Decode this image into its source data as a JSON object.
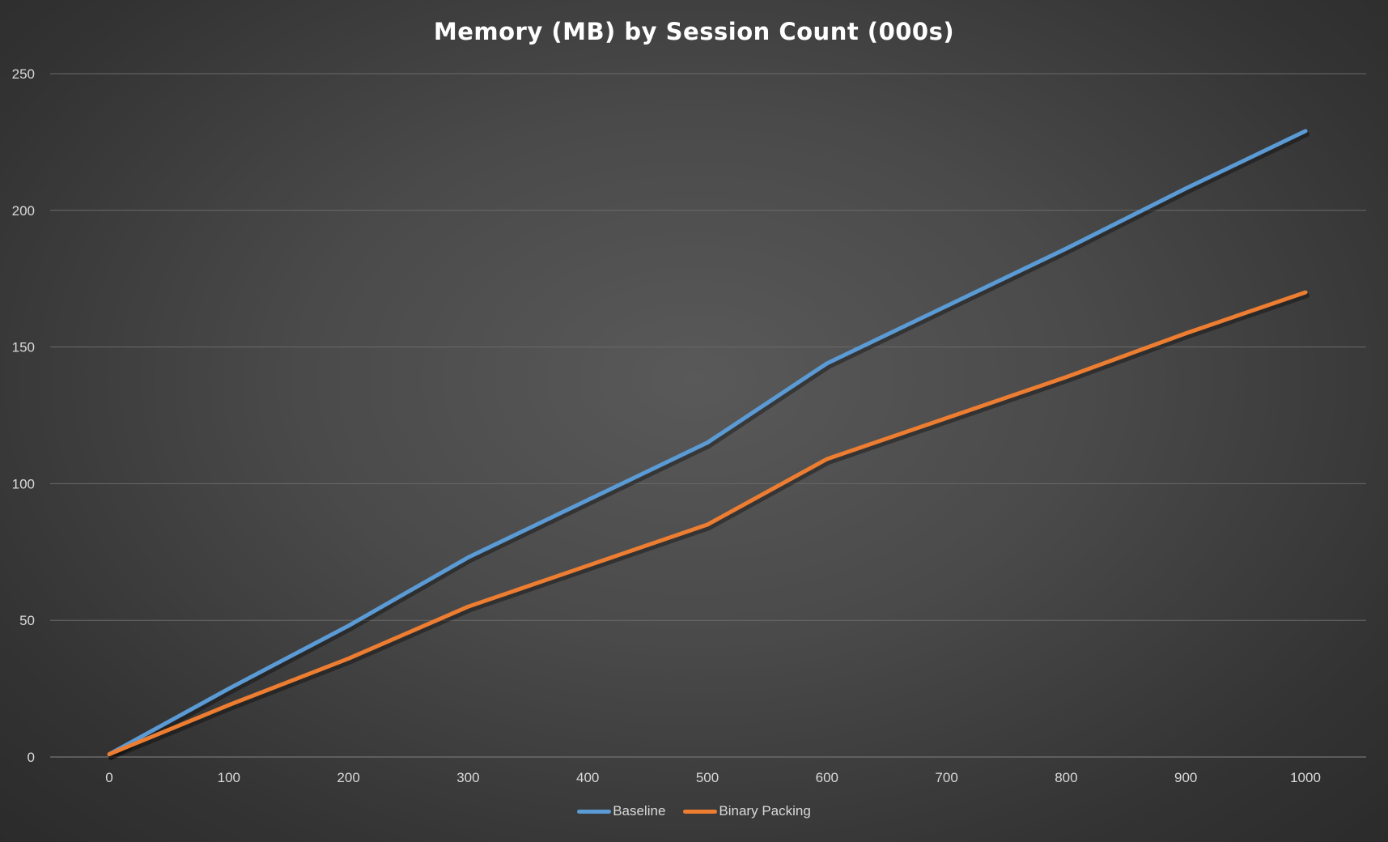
{
  "title": "Memory (MB) by Session Count (000s)",
  "colors": {
    "baseline": "#5b9bd5",
    "binary_packing": "#ed7d31",
    "grid": "#6a6a6a",
    "tick_text": "#d9d9d9"
  },
  "chart_data": {
    "type": "line",
    "title": "Memory (MB) by Session Count (000s)",
    "xlabel": "",
    "ylabel": "",
    "x": [
      0,
      100,
      200,
      300,
      400,
      500,
      600,
      700,
      800,
      900,
      1000
    ],
    "x_tick_labels": [
      "0",
      "100",
      "200",
      "300",
      "400",
      "500",
      "600",
      "700",
      "800",
      "900",
      "1000"
    ],
    "y_tick_labels": [
      "0",
      "50",
      "100",
      "150",
      "200",
      "250"
    ],
    "ylim": [
      0,
      250
    ],
    "grid": "horizontal",
    "legend_position": "bottom",
    "series": [
      {
        "name": "Baseline",
        "color": "#5b9bd5",
        "values": [
          1,
          25,
          48,
          73,
          94,
          115,
          144,
          165,
          186,
          208,
          229
        ]
      },
      {
        "name": "Binary Packing",
        "color": "#ed7d31",
        "values": [
          1,
          19,
          36,
          55,
          70,
          85,
          109,
          124,
          139,
          155,
          170
        ]
      }
    ]
  },
  "legend": {
    "items": [
      {
        "label": "Baseline",
        "color": "#5b9bd5"
      },
      {
        "label": "Binary Packing",
        "color": "#ed7d31"
      }
    ]
  }
}
